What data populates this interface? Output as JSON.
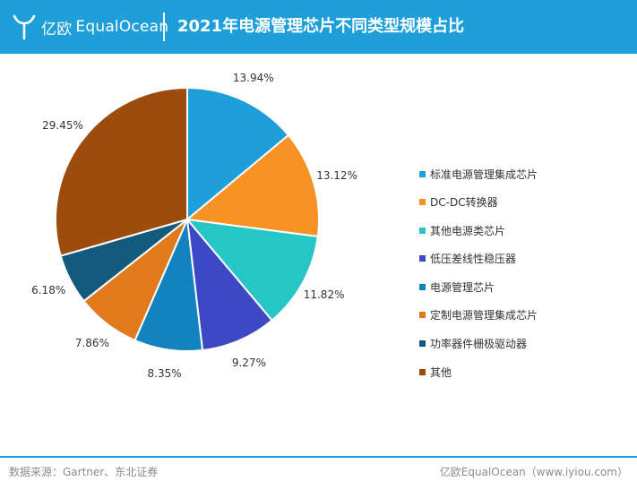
{
  "header": {
    "brand_cn": "亿欧",
    "brand_en": "EqualOcean",
    "title": "2021年电源管理芯片不同类型规模占比"
  },
  "colors": {
    "brand_blue": "#1f9fd9"
  },
  "chart_data": {
    "type": "pie",
    "title": "2021年电源管理芯片不同类型规模占比",
    "unit": "%",
    "legend_position": "right",
    "categories": [
      "标准电源管理集成芯片",
      "DC-DC转换器",
      "其他电源类芯片",
      "低压差线性稳压器",
      "电源管理芯片",
      "定制电源管理集成芯片",
      "功率器件栅极驱动器",
      "其他"
    ],
    "values": [
      13.94,
      13.12,
      11.82,
      9.27,
      8.35,
      7.86,
      6.18,
      29.45
    ],
    "labels": [
      "13.94%",
      "13.12%",
      "11.82%",
      "9.27%",
      "8.35%",
      "7.86%",
      "6.18%",
      "29.45%"
    ],
    "colors": [
      "#1f9fd9",
      "#f79226",
      "#26c6c6",
      "#3c48c4",
      "#1283bf",
      "#e07a1c",
      "#135b7d",
      "#9c4c0c"
    ]
  },
  "footer": {
    "source": "数据来源：Gartner、东北证券",
    "credit": "亿欧EqualOcean（www.iyiou.com）"
  }
}
